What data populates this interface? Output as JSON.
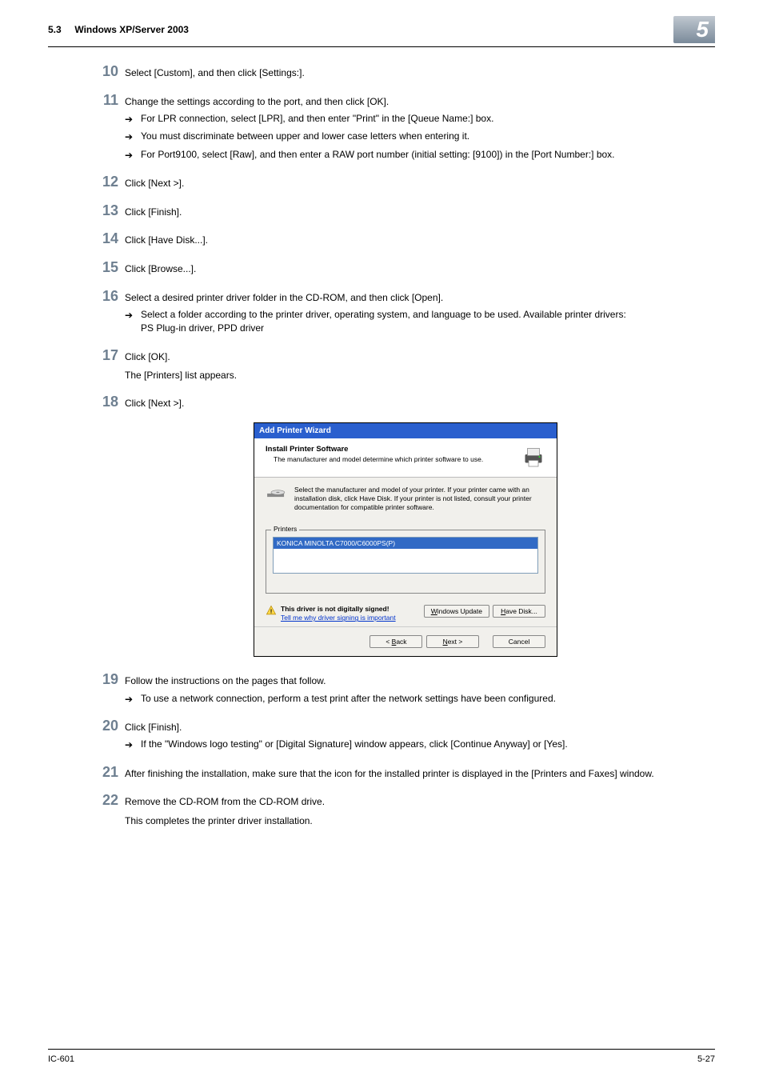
{
  "header": {
    "section_num": "5.3",
    "section_title": "Windows XP/Server 2003",
    "chapter": "5"
  },
  "steps": [
    {
      "n": "10",
      "text": "Select [Custom], and then click [Settings:]."
    },
    {
      "n": "11",
      "text": "Change the settings according to the port, and then click [OK].",
      "subs": [
        "For LPR connection, select [LPR], and then enter \"Print\" in the [Queue Name:] box.",
        "You must discriminate between upper and lower case letters when entering it.",
        "For Port9100, select [Raw], and then enter a RAW port number (initial setting: [9100]) in the [Port Number:] box."
      ]
    },
    {
      "n": "12",
      "text": "Click [Next >]."
    },
    {
      "n": "13",
      "text": "Click [Finish]."
    },
    {
      "n": "14",
      "text": "Click [Have Disk...]."
    },
    {
      "n": "15",
      "text": "Click [Browse...]."
    },
    {
      "n": "16",
      "text": "Select a desired printer driver folder in the CD-ROM, and then click [Open].",
      "subs": [
        "Select a folder according to the printer driver, operating system, and language to be used. Available printer drivers:\nPS Plug-in driver, PPD driver"
      ]
    },
    {
      "n": "17",
      "text": "Click [OK].",
      "after": [
        "The [Printers] list appears."
      ]
    },
    {
      "n": "18",
      "text": "Click [Next >].",
      "wizard": true
    },
    {
      "n": "19",
      "text": "Follow the instructions on the pages that follow.",
      "subs": [
        "To use a network connection, perform a test print after the network settings have been configured."
      ]
    },
    {
      "n": "20",
      "text": "Click [Finish].",
      "subs": [
        "If the \"Windows logo testing\" or [Digital Signature] window appears, click [Continue Anyway] or [Yes]."
      ]
    },
    {
      "n": "21",
      "text": "After finishing the installation, make sure that the icon for the installed printer is displayed in the [Printers and Faxes] window."
    },
    {
      "n": "22",
      "text": "Remove the CD-ROM from the CD-ROM drive.",
      "after": [
        "This completes the printer driver installation."
      ]
    }
  ],
  "wizard": {
    "title": "Add Printer Wizard",
    "head1": "Install Printer Software",
    "head2": "The manufacturer and model determine which printer software to use.",
    "body": "Select the manufacturer and model of your printer. If your printer came with an installation disk, click Have Disk. If your printer is not listed, consult your printer documentation for compatible printer software.",
    "printers_label": "Printers",
    "printer_item": "KONICA MINOLTA C7000/C6000PS(P)",
    "warn1": "This driver is not digitally signed!",
    "warn2": "Tell me why driver signing is important",
    "btn_update": "Windows Update",
    "btn_havedisk": "Have Disk...",
    "btn_back": "< Back",
    "btn_next": "Next >",
    "btn_cancel": "Cancel"
  },
  "footer": {
    "left": "IC-601",
    "right": "5-27"
  },
  "colors": {
    "step_num": "#6e7f90",
    "wiz_title_bg": "#2a5fce",
    "selection_bg": "#316ac5",
    "link": "#0033cc"
  }
}
